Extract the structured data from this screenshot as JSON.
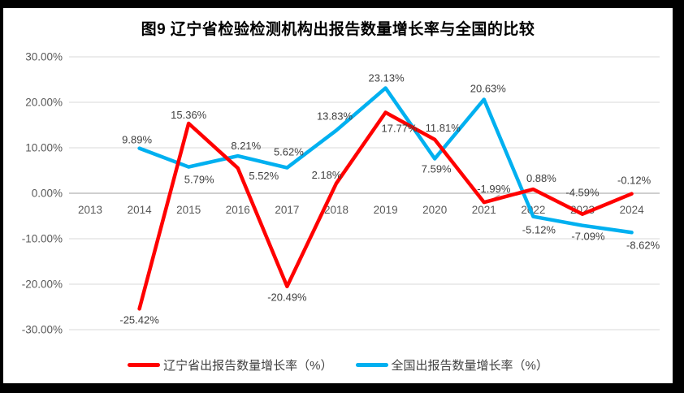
{
  "title": "图9  辽宁省检验检测机构出报告数量增长率与全国的比较",
  "chart_data": {
    "type": "line",
    "x": [
      "2013",
      "2014",
      "2015",
      "2016",
      "2017",
      "2018",
      "2019",
      "2020",
      "2021",
      "2022",
      "2023",
      "2024"
    ],
    "series": [
      {
        "name": "辽宁省出报告数量增长率（%）",
        "color": "#FF0000",
        "values": [
          null,
          -25.42,
          15.36,
          5.52,
          -20.49,
          2.18,
          17.77,
          11.81,
          -1.99,
          0.88,
          -4.59,
          -0.12
        ]
      },
      {
        "name": "全国出报告数量增长率（%）",
        "color": "#00B0F0",
        "values": [
          null,
          9.89,
          5.79,
          8.21,
          5.62,
          13.83,
          23.13,
          7.59,
          20.63,
          -5.12,
          -7.09,
          -8.62
        ]
      }
    ],
    "ylim": [
      -30,
      30
    ],
    "yticks": [
      {
        "value": 30,
        "label": "30.00%"
      },
      {
        "value": 20,
        "label": "20.00%"
      },
      {
        "value": 10,
        "label": "10.00%"
      },
      {
        "value": 0,
        "label": "0.00%"
      },
      {
        "value": -10,
        "label": "-10.00%"
      },
      {
        "value": -20,
        "label": "-20.00%"
      },
      {
        "value": -30,
        "label": "-30.00%"
      }
    ],
    "grid": true,
    "data_labels": true,
    "label_format": "0.00%",
    "legend_position": "bottom"
  },
  "colors": {
    "frame": "#000000",
    "canvas": "#ffffff",
    "gridline": "#d9d9d9",
    "zero_line": "#bfbfbf",
    "axis_text": "#595959",
    "data_label_text": "#404040",
    "leader_line": "#a6a6a6"
  }
}
